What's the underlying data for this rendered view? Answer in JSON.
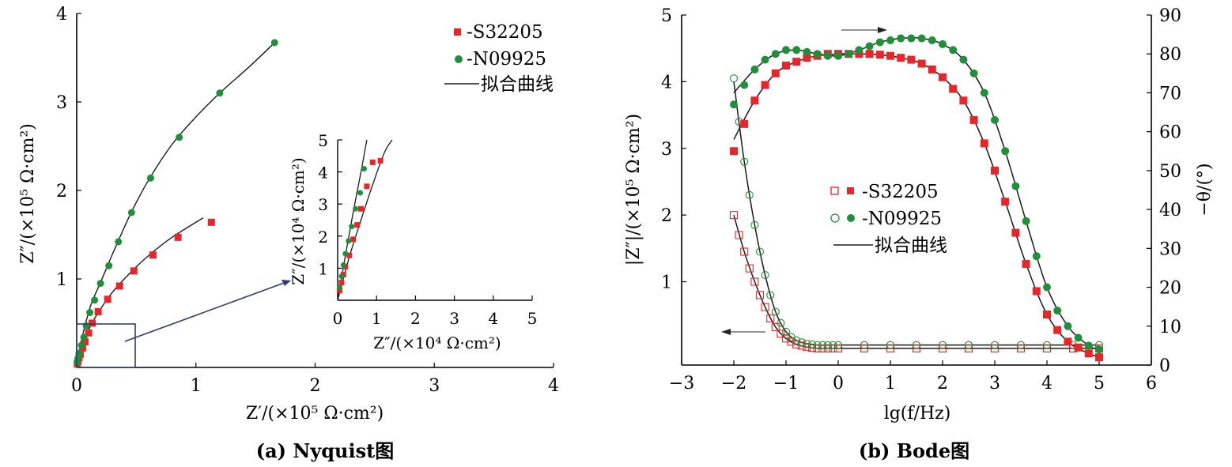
{
  "captions": {
    "a": "(a) Nyquist图",
    "b": "(b) Bode图"
  },
  "colors": {
    "s32205": "#e8262a",
    "n09925": "#1f8f3a",
    "fit": "#1a1a1a",
    "axis": "#000000",
    "inset_box": "#2c3e6b",
    "arrow": "#2c3e6b"
  },
  "legend_a": [
    {
      "label": "-S32205",
      "marker": "red-square"
    },
    {
      "label": "-N09925",
      "marker": "green-circle"
    },
    {
      "label": "拟合曲线",
      "marker": "black-line"
    }
  ],
  "legend_b": [
    {
      "label": "-S32205",
      "marker": "red-open-square + red-square"
    },
    {
      "label": "-N09925",
      "marker": "green-open-circle + green-circle"
    },
    {
      "label": "拟合曲线",
      "marker": "black-line"
    }
  ],
  "chart_data": [
    {
      "id": "nyquist",
      "type": "scatter",
      "xlabel": "Z′/(×10⁵ Ω·cm²)",
      "ylabel": "Z″/(×10⁵ Ω·cm²)",
      "xlim": [
        0,
        4
      ],
      "ylim": [
        0,
        4
      ],
      "xticks": [
        "0",
        "1",
        "2",
        "3",
        "4"
      ],
      "yticks": [
        "1",
        "2",
        "3",
        "4"
      ],
      "series": [
        {
          "name": "-S32205",
          "color": "#e8262a",
          "marker": "square",
          "x": [
            0.005,
            0.01,
            0.02,
            0.03,
            0.05,
            0.07,
            0.1,
            0.13,
            0.18,
            0.26,
            0.36,
            0.48,
            0.64,
            0.85,
            1.13
          ],
          "y": [
            0.04,
            0.07,
            0.11,
            0.15,
            0.22,
            0.29,
            0.39,
            0.5,
            0.63,
            0.77,
            0.92,
            1.09,
            1.27,
            1.47,
            1.64
          ]
        },
        {
          "name": "-N09925",
          "color": "#1f8f3a",
          "marker": "circle",
          "x": [
            0.005,
            0.01,
            0.02,
            0.04,
            0.06,
            0.08,
            0.11,
            0.15,
            0.2,
            0.27,
            0.35,
            0.46,
            0.62,
            0.86,
            1.2,
            1.66
          ],
          "y": [
            0.06,
            0.1,
            0.16,
            0.25,
            0.34,
            0.47,
            0.62,
            0.76,
            0.95,
            1.15,
            1.42,
            1.75,
            2.14,
            2.6,
            3.1,
            3.67
          ]
        }
      ],
      "fit_curves": [
        {
          "x": [
            0,
            0.02,
            0.06,
            0.12,
            0.2,
            0.3,
            0.45,
            0.6,
            0.8,
            1.06
          ],
          "y": [
            0,
            0.12,
            0.29,
            0.48,
            0.66,
            0.85,
            1.07,
            1.26,
            1.47,
            1.69
          ]
        },
        {
          "x": [
            0,
            0.02,
            0.06,
            0.12,
            0.2,
            0.3,
            0.45,
            0.6,
            0.8,
            1.0,
            1.2,
            1.45,
            1.66
          ],
          "y": [
            0,
            0.18,
            0.42,
            0.71,
            0.96,
            1.28,
            1.73,
            2.11,
            2.52,
            2.83,
            3.1,
            3.4,
            3.67
          ]
        }
      ],
      "zoom_box": {
        "x": [
          0,
          0.5
        ],
        "y": [
          0,
          0.5
        ]
      }
    },
    {
      "id": "nyquist-inset",
      "type": "scatter",
      "xlabel": "Z″/(×10⁴ Ω·cm²)",
      "ylabel": "Z″/(×10⁴ Ω·cm²)",
      "xlim": [
        0,
        5
      ],
      "ylim": [
        0,
        5
      ],
      "xticks": [
        "0",
        "1",
        "2",
        "3",
        "4",
        "5"
      ],
      "yticks": [
        "1",
        "2",
        "3",
        "4",
        "5"
      ],
      "series": [
        {
          "name": "-S32205",
          "color": "#e8262a",
          "marker": "square",
          "x": [
            0.05,
            0.1,
            0.15,
            0.2,
            0.3,
            0.4,
            0.5,
            0.6,
            0.75,
            0.9,
            1.1
          ],
          "y": [
            0.3,
            0.55,
            0.8,
            1.05,
            1.4,
            1.9,
            2.35,
            2.85,
            3.55,
            4.3,
            4.35
          ]
        },
        {
          "name": "-N09925",
          "color": "#1f8f3a",
          "marker": "circle",
          "x": [
            0.05,
            0.1,
            0.15,
            0.2,
            0.28,
            0.36,
            0.46,
            0.58,
            0.68
          ],
          "y": [
            0.4,
            0.75,
            1.1,
            1.45,
            1.85,
            2.3,
            2.85,
            3.35,
            4.1
          ]
        }
      ],
      "fit_curves": [
        {
          "x": [
            0,
            0.3,
            0.6,
            0.9,
            1.2,
            1.4
          ],
          "y": [
            0,
            1.35,
            2.5,
            3.6,
            4.6,
            5
          ]
        },
        {
          "x": [
            0,
            0.2,
            0.4,
            0.6,
            0.75
          ],
          "y": [
            0,
            1.4,
            2.75,
            4.0,
            5
          ]
        }
      ]
    },
    {
      "id": "bode",
      "type": "scatter",
      "xlabel": "lg(f/Hz)",
      "ylabel": "|Z″|/(×10⁵ Ω·cm²)",
      "y2label": "−θ/(°)",
      "xlim": [
        -3,
        6
      ],
      "ylim": [
        -0.25,
        5
      ],
      "y2lim": [
        0,
        90
      ],
      "xticks": [
        "−3",
        "−2",
        "−1",
        "0",
        "1",
        "2",
        "3",
        "4",
        "5",
        "6"
      ],
      "yticks": [
        "1",
        "2",
        "3",
        "4",
        "5"
      ],
      "y2ticks": [
        "0",
        "10",
        "20",
        "30",
        "40",
        "50",
        "60",
        "70",
        "80",
        "90"
      ],
      "series": [
        {
          "name": "-S32205 |Z|",
          "color": "#e8262a",
          "marker": "open-square",
          "axis": "left",
          "x": [
            -2,
            -1.9,
            -1.8,
            -1.7,
            -1.6,
            -1.5,
            -1.4,
            -1.3,
            -1.2,
            -1.1,
            -1,
            -0.9,
            -0.8,
            -0.7,
            -0.6,
            -0.5,
            -0.4,
            -0.3,
            -0.2,
            -0.1,
            0,
            0.5,
            1,
            1.5,
            2,
            2.5,
            3,
            3.5,
            4,
            4.5,
            5
          ],
          "y": [
            2,
            1.7,
            1.45,
            1.2,
            1,
            0.8,
            0.62,
            0.45,
            0.32,
            0.22,
            0.15,
            0.1,
            0.06,
            0.04,
            0.02,
            0.01,
            0,
            0,
            0,
            0,
            0,
            0,
            0,
            0,
            0,
            0,
            0,
            0,
            0,
            0,
            0
          ]
        },
        {
          "name": "-N09925 |Z|",
          "color": "#1f8f3a",
          "marker": "open-circle",
          "axis": "left",
          "x": [
            -2,
            -1.9,
            -1.8,
            -1.7,
            -1.6,
            -1.5,
            -1.4,
            -1.3,
            -1.2,
            -1.1,
            -1,
            -0.9,
            -0.8,
            -0.7,
            -0.6,
            -0.5,
            -0.4,
            -0.3,
            -0.2,
            -0.1,
            0,
            0.5,
            1,
            1.5,
            2,
            2.5,
            3,
            3.5,
            4,
            4.5,
            5
          ],
          "y": [
            4.05,
            3.4,
            2.8,
            2.3,
            1.85,
            1.45,
            1.1,
            0.8,
            0.55,
            0.38,
            0.25,
            0.17,
            0.12,
            0.09,
            0.07,
            0.06,
            0.05,
            0.05,
            0.05,
            0.05,
            0.05,
            0.05,
            0.05,
            0.05,
            0.05,
            0.05,
            0.05,
            0.05,
            0.05,
            0.05,
            0.05
          ]
        },
        {
          "name": "-S32205 θ",
          "color": "#e8262a",
          "marker": "square",
          "axis": "right",
          "x": [
            -2,
            -1.8,
            -1.6,
            -1.4,
            -1.2,
            -1,
            -0.8,
            -0.6,
            -0.4,
            -0.2,
            0,
            0.2,
            0.4,
            0.6,
            0.8,
            1,
            1.2,
            1.4,
            1.6,
            1.8,
            2,
            2.2,
            2.4,
            2.6,
            2.8,
            3,
            3.2,
            3.4,
            3.6,
            3.8,
            4,
            4.2,
            4.4,
            4.6,
            4.8,
            5
          ],
          "y": [
            55,
            62,
            68,
            72,
            75,
            77,
            78,
            79,
            79.5,
            80,
            80,
            80,
            80,
            80,
            79.8,
            79.5,
            79,
            78.5,
            77.5,
            76,
            74,
            71,
            68,
            63,
            57,
            50,
            42,
            34,
            26,
            19,
            13,
            9,
            6,
            4.5,
            3,
            2
          ]
        },
        {
          "name": "-N09925 θ",
          "color": "#1f8f3a",
          "marker": "circle",
          "axis": "right",
          "x": [
            -2,
            -1.8,
            -1.6,
            -1.4,
            -1.2,
            -1,
            -0.8,
            -0.6,
            -0.4,
            -0.2,
            0,
            0.2,
            0.4,
            0.6,
            0.8,
            1,
            1.2,
            1.4,
            1.6,
            1.8,
            2,
            2.2,
            2.4,
            2.6,
            2.8,
            3,
            3.2,
            3.4,
            3.6,
            3.8,
            4,
            4.2,
            4.4,
            4.6,
            4.8,
            5
          ],
          "y": [
            67,
            72,
            76,
            78.5,
            80,
            81,
            81,
            80.5,
            80,
            79.5,
            79.5,
            80,
            81,
            82,
            83,
            83.5,
            84,
            84,
            84,
            83.5,
            82.5,
            81,
            78.5,
            75,
            70,
            63,
            55,
            46,
            37,
            28,
            20,
            14,
            10,
            7,
            5,
            4
          ]
        }
      ],
      "fit_curves": [
        {
          "axis": "left",
          "x": [
            -2,
            -1.8,
            -1.6,
            -1.4,
            -1.2,
            -1,
            -0.8,
            -0.6,
            -0.4,
            -0.2,
            0,
            1,
            2,
            3,
            4,
            5
          ],
          "y": [
            2,
            1.45,
            1,
            0.62,
            0.32,
            0.15,
            0.06,
            0.02,
            0,
            0,
            0,
            0,
            0,
            0,
            0,
            0
          ]
        },
        {
          "axis": "left",
          "x": [
            -2,
            -1.8,
            -1.6,
            -1.4,
            -1.2,
            -1,
            -0.8,
            -0.6,
            -0.4,
            -0.2,
            0,
            1,
            2,
            3,
            4,
            5
          ],
          "y": [
            4,
            2.8,
            1.85,
            1.1,
            0.55,
            0.25,
            0.12,
            0.07,
            0.05,
            0.05,
            0.05,
            0.05,
            0.05,
            0.05,
            0.05,
            0.05
          ]
        },
        {
          "axis": "right",
          "x": [
            -2,
            -1.6,
            -1.2,
            -0.8,
            -0.4,
            0,
            0.4,
            0.8,
            1.2,
            1.6,
            2,
            2.4,
            2.8,
            3.2,
            3.6,
            4,
            4.4,
            4.8,
            5
          ],
          "y": [
            58,
            68,
            75,
            78,
            79.5,
            80,
            80,
            79.8,
            79,
            77.5,
            74,
            68,
            57,
            42,
            26,
            13,
            6,
            3,
            2
          ]
        },
        {
          "axis": "right",
          "x": [
            -2,
            -1.6,
            -1.2,
            -0.8,
            -0.4,
            0,
            0.4,
            0.8,
            1.2,
            1.6,
            2,
            2.4,
            2.8,
            3.2,
            3.6,
            4,
            4.4,
            4.8,
            5
          ],
          "y": [
            70,
            76,
            80,
            81,
            80,
            79.5,
            81,
            83,
            84,
            84,
            82.5,
            78.5,
            70,
            55,
            37,
            20,
            10,
            5,
            4
          ]
        }
      ]
    }
  ]
}
